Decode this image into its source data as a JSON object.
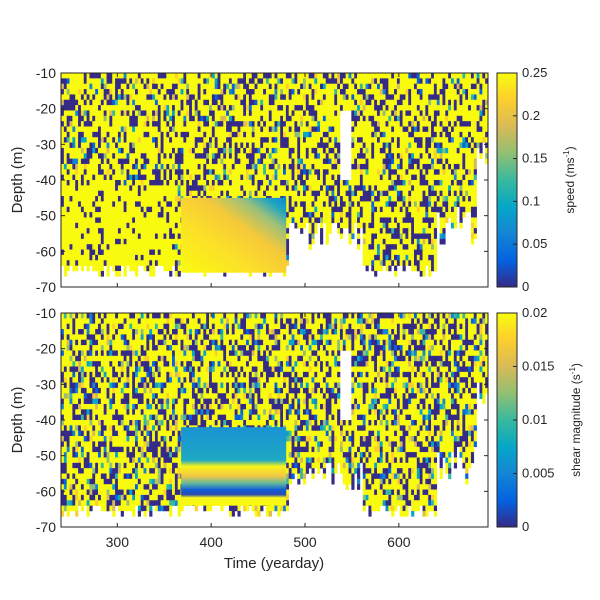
{
  "chart_data": [
    {
      "type": "heatmap",
      "title": "",
      "xlabel": "",
      "ylabel": "Depth (m)",
      "xlim": [
        240,
        695
      ],
      "ylim": [
        -70,
        -10
      ],
      "x_ticks": [
        300,
        400,
        500,
        600
      ],
      "x_tick_labels": [
        "",
        "",
        "",
        ""
      ],
      "y_ticks": [
        -70,
        -60,
        -50,
        -40,
        -30,
        -20,
        -10
      ],
      "y_tick_labels": [
        "-70",
        "-60",
        "-50",
        "-40",
        "-30",
        "-20",
        "-10"
      ],
      "colorbar": {
        "label_main": "speed (ms",
        "label_sup": "-1",
        "label_tail": ")",
        "clim": [
          0,
          0.25
        ],
        "ticks": [
          0,
          0.05,
          0.1,
          0.15,
          0.2,
          0.25
        ],
        "tick_labels": [
          "0",
          "0.05",
          "0.1",
          "0.15",
          "0.2",
          "0.25"
        ]
      },
      "smooth_block": {
        "x": [
          368,
          480
        ],
        "depth": [
          -66,
          -45
        ],
        "low": 0.18,
        "high": 0.225,
        "gradient": "diagonal"
      },
      "colormap": "parula",
      "grid": false
    },
    {
      "type": "heatmap",
      "title": "",
      "xlabel": "Time (yearday)",
      "ylabel": "Depth (m)",
      "xlim": [
        240,
        695
      ],
      "ylim": [
        -70,
        -10
      ],
      "x_ticks": [
        300,
        400,
        500,
        600
      ],
      "x_tick_labels": [
        "300",
        "400",
        "500",
        "600"
      ],
      "y_ticks": [
        -70,
        -60,
        -50,
        -40,
        -30,
        -20,
        -10
      ],
      "y_tick_labels": [
        "-70",
        "-60",
        "-50",
        "-40",
        "-30",
        "-20",
        "-10"
      ],
      "colorbar": {
        "label_main": "shear magnitude (s",
        "label_sup": "-1",
        "label_tail": ")",
        "clim": [
          0,
          0.02
        ],
        "ticks": [
          0,
          0.005,
          0.01,
          0.015,
          0.02
        ],
        "tick_labels": [
          "0",
          "0.005",
          "0.01",
          "0.015",
          "0.02"
        ]
      },
      "smooth_block": {
        "x": [
          368,
          480
        ],
        "depth": [
          -64,
          -42
        ],
        "low": 0.004,
        "high": 0.02,
        "gradient": "bands"
      },
      "colormap": "parula",
      "grid": false
    }
  ]
}
